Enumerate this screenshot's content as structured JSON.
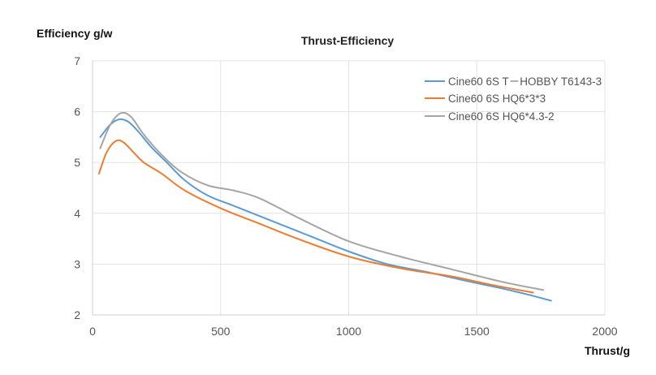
{
  "chart_data": {
    "type": "line",
    "title": "Thrust-Efficiency",
    "ylabel": "Efficiency g/w",
    "xlabel": "Thrust/g",
    "xlim": [
      0,
      2000
    ],
    "ylim": [
      2,
      7
    ],
    "x_ticks": [
      0,
      500,
      1000,
      1500,
      2000
    ],
    "y_ticks": [
      2,
      3,
      4,
      5,
      6,
      7
    ],
    "grid": "vertical and horizontal",
    "legend_position": "top-right",
    "series": [
      {
        "name": "Cine60 6S T－HOBBY T6143-3",
        "color": "#5b9bd5",
        "points": [
          [
            30,
            5.5
          ],
          [
            70,
            5.75
          ],
          [
            105,
            5.85
          ],
          [
            140,
            5.8
          ],
          [
            180,
            5.6
          ],
          [
            230,
            5.3
          ],
          [
            290,
            5.0
          ],
          [
            360,
            4.65
          ],
          [
            450,
            4.35
          ],
          [
            550,
            4.15
          ],
          [
            700,
            3.85
          ],
          [
            850,
            3.55
          ],
          [
            1000,
            3.25
          ],
          [
            1150,
            3.0
          ],
          [
            1300,
            2.85
          ],
          [
            1450,
            2.68
          ],
          [
            1600,
            2.52
          ],
          [
            1700,
            2.4
          ],
          [
            1790,
            2.28
          ]
        ]
      },
      {
        "name": "Cine60 6S HQ6*3*3",
        "color": "#ed7d31",
        "points": [
          [
            25,
            4.78
          ],
          [
            55,
            5.2
          ],
          [
            90,
            5.42
          ],
          [
            120,
            5.4
          ],
          [
            160,
            5.2
          ],
          [
            200,
            5.0
          ],
          [
            270,
            4.78
          ],
          [
            360,
            4.45
          ],
          [
            500,
            4.1
          ],
          [
            650,
            3.8
          ],
          [
            800,
            3.5
          ],
          [
            1000,
            3.15
          ],
          [
            1200,
            2.92
          ],
          [
            1400,
            2.76
          ],
          [
            1550,
            2.6
          ],
          [
            1720,
            2.44
          ]
        ]
      },
      {
        "name": "Cine60 6S HQ6*4.3-2",
        "color": "#a5a5a5",
        "points": [
          [
            30,
            5.28
          ],
          [
            70,
            5.75
          ],
          [
            110,
            5.97
          ],
          [
            150,
            5.9
          ],
          [
            200,
            5.55
          ],
          [
            270,
            5.15
          ],
          [
            350,
            4.8
          ],
          [
            450,
            4.55
          ],
          [
            550,
            4.45
          ],
          [
            650,
            4.3
          ],
          [
            800,
            3.92
          ],
          [
            1000,
            3.45
          ],
          [
            1200,
            3.15
          ],
          [
            1400,
            2.9
          ],
          [
            1600,
            2.65
          ],
          [
            1760,
            2.49
          ]
        ]
      }
    ]
  }
}
